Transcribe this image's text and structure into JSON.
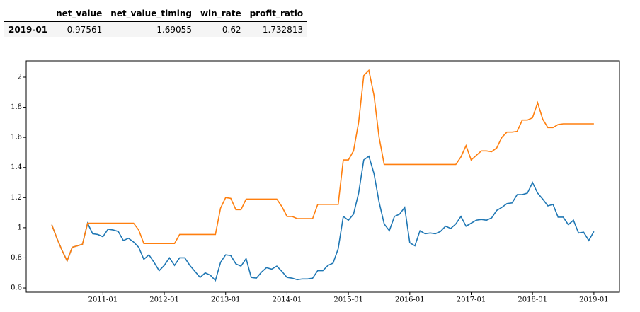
{
  "table": {
    "columns": [
      "net_value",
      "net_value_timing",
      "win_rate",
      "profit_ratio"
    ],
    "rows": [
      {
        "index": "2019-01",
        "cells": [
          0.97561,
          1.69055,
          0.62,
          1.732813
        ]
      }
    ]
  },
  "chart_data": {
    "type": "line",
    "x": [
      "2010-03",
      "2010-04",
      "2010-05",
      "2010-06",
      "2010-07",
      "2010-08",
      "2010-09",
      "2010-10",
      "2010-11",
      "2010-12",
      "2011-01",
      "2011-02",
      "2011-03",
      "2011-04",
      "2011-05",
      "2011-06",
      "2011-07",
      "2011-08",
      "2011-09",
      "2011-10",
      "2011-11",
      "2011-12",
      "2012-01",
      "2012-02",
      "2012-03",
      "2012-04",
      "2012-05",
      "2012-06",
      "2012-07",
      "2012-08",
      "2012-09",
      "2012-10",
      "2012-11",
      "2012-12",
      "2013-01",
      "2013-02",
      "2013-03",
      "2013-04",
      "2013-05",
      "2013-06",
      "2013-07",
      "2013-08",
      "2013-09",
      "2013-10",
      "2013-11",
      "2013-12",
      "2014-01",
      "2014-02",
      "2014-03",
      "2014-04",
      "2014-05",
      "2014-06",
      "2014-07",
      "2014-08",
      "2014-09",
      "2014-10",
      "2014-11",
      "2014-12",
      "2015-01",
      "2015-02",
      "2015-03",
      "2015-04",
      "2015-05",
      "2015-06",
      "2015-07",
      "2015-08",
      "2015-09",
      "2015-10",
      "2015-11",
      "2015-12",
      "2016-01",
      "2016-02",
      "2016-03",
      "2016-04",
      "2016-05",
      "2016-06",
      "2016-07",
      "2016-08",
      "2016-09",
      "2016-10",
      "2016-11",
      "2016-12",
      "2017-01",
      "2017-02",
      "2017-03",
      "2017-04",
      "2017-05",
      "2017-06",
      "2017-07",
      "2017-08",
      "2017-09",
      "2017-10",
      "2017-11",
      "2017-12",
      "2018-01",
      "2018-02",
      "2018-03",
      "2018-04",
      "2018-05",
      "2018-06",
      "2018-07",
      "2018-08",
      "2018-09",
      "2018-10",
      "2018-11",
      "2018-12",
      "2019-01"
    ],
    "series": [
      {
        "color": "#1f77b4",
        "values": [
          1.02,
          0.93,
          0.85,
          0.78,
          0.87,
          0.88,
          0.89,
          1.03,
          0.96,
          0.955,
          0.94,
          0.99,
          0.985,
          0.975,
          0.915,
          0.93,
          0.905,
          0.87,
          0.79,
          0.82,
          0.77,
          0.715,
          0.75,
          0.8,
          0.75,
          0.8,
          0.8,
          0.75,
          0.71,
          0.67,
          0.7,
          0.685,
          0.65,
          0.77,
          0.82,
          0.815,
          0.76,
          0.745,
          0.795,
          0.67,
          0.665,
          0.705,
          0.735,
          0.725,
          0.745,
          0.71,
          0.67,
          0.665,
          0.655,
          0.66,
          0.66,
          0.665,
          0.715,
          0.715,
          0.75,
          0.765,
          0.86,
          1.075,
          1.05,
          1.09,
          1.23,
          1.45,
          1.475,
          1.36,
          1.17,
          1.025,
          0.98,
          1.075,
          1.09,
          1.135,
          0.9,
          0.88,
          0.98,
          0.96,
          0.965,
          0.96,
          0.975,
          1.01,
          0.995,
          1.025,
          1.075,
          1.01,
          1.03,
          1.05,
          1.055,
          1.05,
          1.065,
          1.115,
          1.135,
          1.16,
          1.165,
          1.22,
          1.22,
          1.23,
          1.3,
          1.23,
          1.19,
          1.145,
          1.155,
          1.07,
          1.07,
          1.02,
          1.05,
          0.965,
          0.97,
          0.915,
          0.975
        ]
      },
      {
        "color": "#ff7f0e",
        "values": [
          1.02,
          0.93,
          0.85,
          0.78,
          0.87,
          0.88,
          0.89,
          1.03,
          1.03,
          1.03,
          1.03,
          1.03,
          1.03,
          1.03,
          1.03,
          1.03,
          1.03,
          0.985,
          0.895,
          0.895,
          0.895,
          0.895,
          0.895,
          0.895,
          0.895,
          0.955,
          0.955,
          0.955,
          0.955,
          0.955,
          0.955,
          0.955,
          0.955,
          1.13,
          1.2,
          1.195,
          1.12,
          1.12,
          1.19,
          1.19,
          1.19,
          1.19,
          1.19,
          1.19,
          1.19,
          1.14,
          1.075,
          1.075,
          1.06,
          1.06,
          1.06,
          1.06,
          1.155,
          1.155,
          1.155,
          1.155,
          1.155,
          1.45,
          1.45,
          1.51,
          1.7,
          2.01,
          2.045,
          1.88,
          1.6,
          1.42,
          1.42,
          1.42,
          1.42,
          1.42,
          1.42,
          1.42,
          1.42,
          1.42,
          1.42,
          1.42,
          1.42,
          1.42,
          1.42,
          1.42,
          1.47,
          1.545,
          1.45,
          1.48,
          1.51,
          1.51,
          1.505,
          1.53,
          1.6,
          1.635,
          1.635,
          1.64,
          1.715,
          1.715,
          1.73,
          1.83,
          1.72,
          1.665,
          1.665,
          1.685,
          1.69,
          1.69,
          1.69,
          1.69,
          1.69,
          1.69,
          1.69
        ]
      }
    ],
    "xlim": [
      "2009-10",
      "2019-06"
    ],
    "xticks": [
      "2011-01",
      "2012-01",
      "2013-01",
      "2014-01",
      "2015-01",
      "2016-01",
      "2017-01",
      "2018-01",
      "2019-01"
    ],
    "ylim": [
      0.572,
      2.108
    ],
    "yticks": [
      0.6,
      0.8,
      1.0,
      1.2,
      1.4,
      1.6,
      1.8,
      2.0
    ]
  }
}
